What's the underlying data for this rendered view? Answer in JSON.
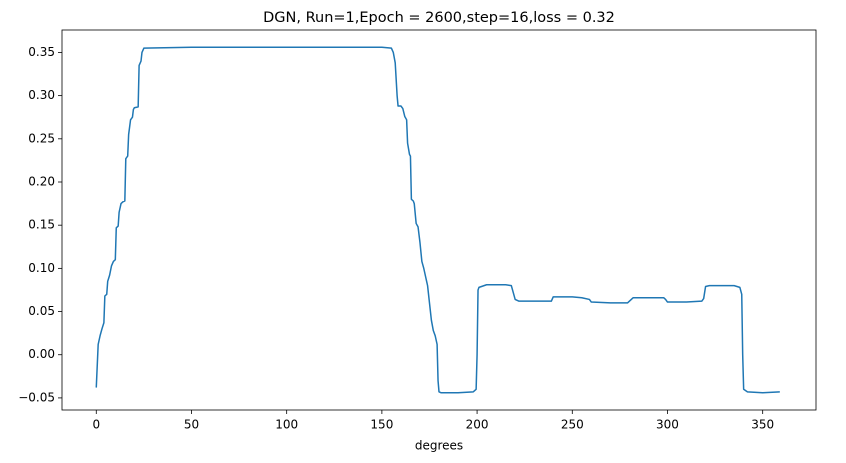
{
  "chart_data": {
    "type": "line",
    "title": "DGN, Run=1,Epoch = 2600,step=16,loss = 0.32",
    "x_label": "degrees",
    "x": [
      0,
      1,
      2,
      3,
      4,
      4.5,
      5.5,
      6,
      7,
      8,
      9,
      10,
      10.5,
      11.5,
      12,
      13,
      14,
      15,
      15.5,
      16.5,
      17,
      18,
      19,
      19.5,
      20,
      22,
      22.5,
      23.5,
      24,
      25,
      50,
      100,
      150,
      155,
      156,
      157,
      158,
      158.5,
      160,
      161,
      162,
      163,
      163.5,
      164.5,
      165,
      165.5,
      166.5,
      167,
      168,
      169,
      170,
      171,
      172,
      173,
      173.5,
      174,
      175,
      176,
      177,
      178,
      179,
      179.5,
      180,
      181,
      190,
      198,
      199.5,
      200,
      200.5,
      201,
      205,
      215,
      218,
      219,
      220,
      222,
      230,
      239,
      240,
      250,
      255,
      259,
      260,
      270,
      279,
      280,
      282,
      290,
      298,
      299,
      300,
      310,
      318,
      319,
      320,
      322,
      335,
      338,
      339,
      339.5,
      340,
      342,
      350,
      359
    ],
    "series": [
      {
        "name": "loss",
        "color": "#1f77b4",
        "values": [
          -0.038,
          0.012,
          0.022,
          0.03,
          0.037,
          0.068,
          0.07,
          0.085,
          0.092,
          0.103,
          0.108,
          0.11,
          0.147,
          0.149,
          0.165,
          0.175,
          0.177,
          0.178,
          0.227,
          0.23,
          0.255,
          0.272,
          0.275,
          0.284,
          0.286,
          0.287,
          0.335,
          0.34,
          0.35,
          0.355,
          0.356,
          0.356,
          0.356,
          0.355,
          0.35,
          0.338,
          0.3,
          0.288,
          0.288,
          0.285,
          0.276,
          0.272,
          0.245,
          0.232,
          0.23,
          0.18,
          0.178,
          0.175,
          0.152,
          0.148,
          0.13,
          0.108,
          0.1,
          0.09,
          0.085,
          0.08,
          0.06,
          0.04,
          0.028,
          0.022,
          0.012,
          -0.03,
          -0.043,
          -0.044,
          -0.044,
          -0.043,
          -0.04,
          0.0,
          0.075,
          0.078,
          0.081,
          0.081,
          0.08,
          0.072,
          0.064,
          0.062,
          0.062,
          0.062,
          0.067,
          0.067,
          0.066,
          0.064,
          0.061,
          0.06,
          0.06,
          0.062,
          0.066,
          0.066,
          0.066,
          0.064,
          0.061,
          0.061,
          0.062,
          0.065,
          0.079,
          0.08,
          0.08,
          0.078,
          0.07,
          0.0,
          -0.04,
          -0.043,
          -0.044,
          -0.043
        ]
      }
    ],
    "xlim": [
      -18,
      378
    ],
    "ylim": [
      -0.064,
      0.376
    ],
    "xticks": [
      0,
      50,
      100,
      150,
      200,
      250,
      300,
      350
    ],
    "yticks": [
      {
        "value": -0.05,
        "label": "−0.05"
      },
      {
        "value": 0,
        "label": "0.00"
      },
      0.05,
      {
        "value": 0.1,
        "label": "0.10"
      },
      0.15,
      {
        "value": 0.2,
        "label": "0.20"
      },
      0.25,
      {
        "value": 0.3,
        "label": "0.30"
      },
      0.35
    ],
    "grid": false
  }
}
